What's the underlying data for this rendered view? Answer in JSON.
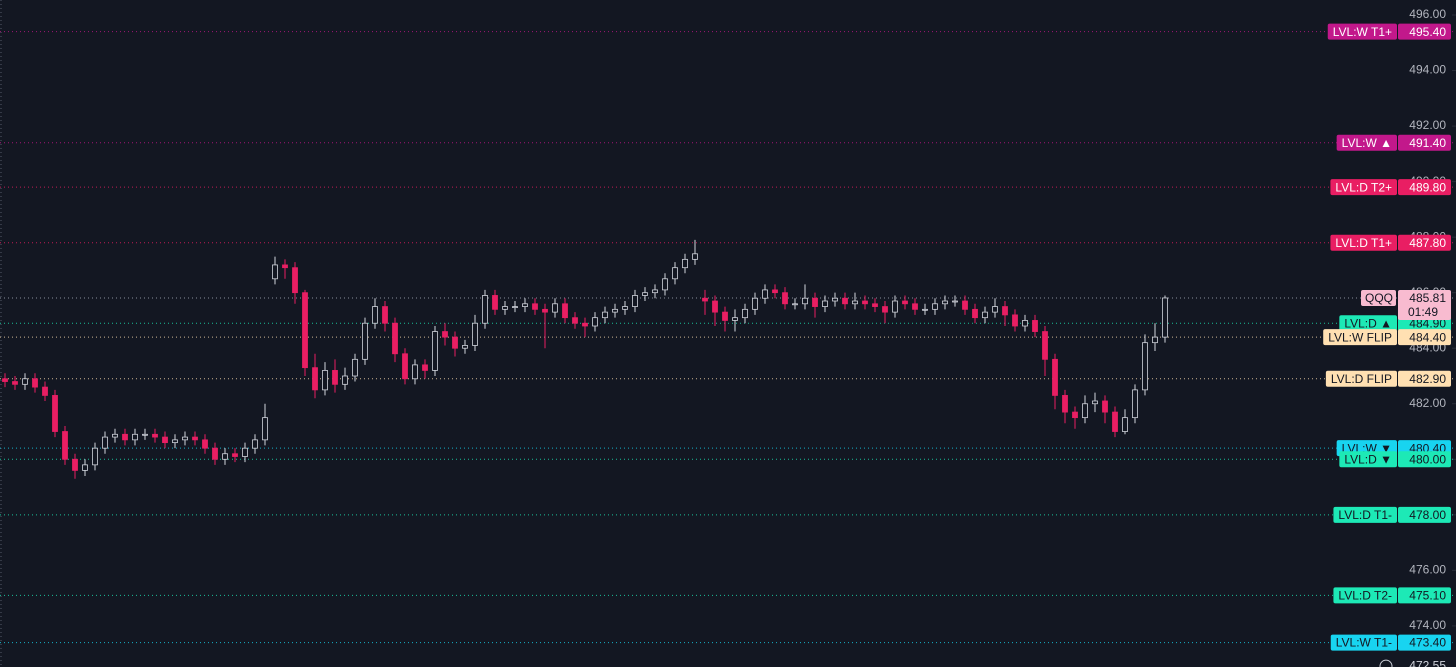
{
  "chart_data": {
    "type": "candlestick",
    "symbol": "QQQ",
    "last_price": 485.81,
    "countdown": "01:49",
    "cursor_price": 472.55,
    "up_color": "#d1d4dc",
    "down_color": "#e91e63",
    "ylim": [
      472.52,
      496.54
    ],
    "yticks": [
      {
        "value": 474,
        "label": "474.00"
      },
      {
        "value": 476,
        "label": "476.00"
      },
      {
        "value": 478,
        "label": "478.00"
      },
      {
        "value": 480,
        "label": "480.00"
      },
      {
        "value": 482,
        "label": "482.00"
      },
      {
        "value": 484,
        "label": "484.00"
      },
      {
        "value": 486,
        "label": "486.00"
      },
      {
        "value": 488,
        "label": "488.00"
      },
      {
        "value": 490,
        "label": "490.00"
      },
      {
        "value": 492,
        "label": "492.00"
      },
      {
        "value": 494,
        "label": "494.00"
      },
      {
        "value": 496,
        "label": "496.00"
      }
    ],
    "open": [
      482.9,
      482.8,
      482.7,
      482.9,
      482.6,
      482.3,
      481.0,
      480.0,
      479.6,
      479.8,
      480.4,
      480.8,
      480.9,
      480.7,
      480.9,
      480.9,
      480.8,
      480.6,
      480.7,
      480.8,
      480.7,
      480.4,
      480.0,
      480.2,
      480.1,
      480.4,
      480.7,
      486.5,
      487.0,
      486.9,
      486.0,
      483.3,
      482.5,
      483.2,
      482.7,
      483.0,
      483.6,
      484.9,
      485.5,
      484.9,
      483.8,
      482.9,
      483.4,
      483.2,
      484.6,
      484.4,
      484.0,
      484.1,
      484.9,
      485.9,
      485.4,
      485.5,
      485.5,
      485.6,
      485.4,
      485.3,
      485.6,
      485.1,
      484.9,
      484.8,
      485.1,
      485.3,
      485.4,
      485.5,
      485.9,
      486.0,
      486.1,
      486.5,
      486.9,
      487.2,
      485.8,
      485.7,
      485.3,
      485.0,
      485.1,
      485.4,
      485.8,
      486.1,
      486.0,
      485.6,
      485.6,
      485.8,
      485.5,
      485.7,
      485.8,
      485.6,
      485.7,
      485.6,
      485.5,
      485.3,
      485.7,
      485.6,
      485.4,
      485.4,
      485.6,
      485.7,
      485.7,
      485.4,
      485.1,
      485.3,
      485.5,
      485.2,
      484.8,
      485.0,
      484.6,
      483.6,
      482.3,
      481.7,
      481.5,
      482.0,
      482.1,
      481.7,
      481.0,
      481.5,
      482.5,
      484.2,
      484.4
    ],
    "high": [
      483.1,
      483.0,
      483.1,
      483.1,
      482.8,
      482.5,
      481.2,
      480.2,
      480.0,
      480.6,
      481.0,
      481.1,
      481.1,
      481.1,
      481.1,
      481.1,
      481.0,
      480.9,
      481.0,
      481.0,
      480.9,
      480.6,
      480.4,
      480.4,
      480.6,
      480.9,
      482.0,
      487.3,
      487.2,
      487.1,
      486.1,
      483.8,
      483.5,
      483.6,
      483.3,
      483.8,
      485.1,
      485.8,
      485.7,
      485.1,
      484.0,
      483.6,
      483.6,
      484.8,
      484.9,
      484.6,
      484.3,
      485.2,
      486.1,
      486.1,
      485.7,
      485.7,
      485.8,
      485.8,
      485.6,
      485.8,
      485.8,
      485.3,
      485.1,
      485.3,
      485.5,
      485.6,
      485.7,
      486.1,
      486.2,
      486.3,
      486.7,
      487.1,
      487.4,
      487.9,
      486.1,
      485.9,
      485.5,
      485.4,
      485.6,
      486.0,
      486.3,
      486.3,
      486.2,
      485.8,
      486.3,
      486.0,
      485.9,
      486.0,
      486.0,
      486.0,
      485.9,
      485.8,
      485.7,
      485.9,
      485.9,
      485.8,
      485.6,
      485.8,
      485.9,
      485.9,
      485.9,
      485.6,
      485.5,
      485.8,
      485.7,
      485.4,
      485.2,
      485.2,
      484.8,
      483.8,
      482.5,
      481.9,
      482.3,
      482.4,
      482.3,
      481.9,
      481.8,
      482.7,
      484.5,
      484.9,
      485.9
    ],
    "low": [
      482.6,
      482.5,
      482.5,
      482.4,
      482.1,
      480.8,
      479.8,
      479.3,
      479.4,
      479.6,
      480.2,
      480.6,
      480.5,
      480.5,
      480.7,
      480.6,
      480.4,
      480.4,
      480.5,
      480.5,
      480.2,
      479.8,
      479.8,
      479.9,
      479.9,
      480.2,
      480.5,
      486.3,
      486.5,
      485.6,
      483.0,
      482.2,
      482.3,
      482.4,
      482.5,
      482.8,
      483.4,
      484.7,
      484.6,
      483.5,
      482.7,
      482.7,
      482.9,
      483.0,
      484.1,
      483.7,
      483.8,
      483.9,
      484.7,
      485.2,
      485.2,
      485.3,
      485.3,
      485.2,
      484.0,
      485.1,
      484.9,
      484.7,
      484.4,
      484.6,
      484.9,
      485.1,
      485.2,
      485.3,
      485.7,
      485.8,
      485.9,
      486.3,
      486.7,
      487.0,
      485.2,
      484.8,
      484.6,
      484.6,
      484.9,
      485.2,
      485.6,
      485.8,
      485.4,
      485.4,
      485.4,
      485.1,
      485.3,
      485.5,
      485.4,
      485.4,
      485.4,
      485.3,
      484.9,
      485.1,
      485.4,
      485.2,
      485.2,
      485.2,
      485.4,
      485.5,
      485.2,
      484.9,
      484.9,
      485.1,
      484.8,
      484.6,
      484.6,
      484.4,
      483.0,
      481.8,
      481.3,
      481.1,
      481.3,
      481.7,
      481.3,
      480.8,
      480.9,
      481.3,
      482.3,
      483.9,
      484.2
    ],
    "close": [
      482.8,
      482.7,
      482.9,
      482.6,
      482.3,
      481.0,
      480.0,
      479.6,
      479.8,
      480.4,
      480.8,
      480.9,
      480.7,
      480.9,
      480.9,
      480.8,
      480.6,
      480.7,
      480.8,
      480.7,
      480.4,
      480.0,
      480.2,
      480.1,
      480.4,
      480.7,
      481.5,
      487.0,
      486.9,
      486.0,
      483.3,
      482.5,
      483.2,
      482.7,
      483.0,
      483.6,
      484.9,
      485.5,
      484.9,
      483.8,
      482.9,
      483.4,
      483.2,
      484.6,
      484.4,
      484.0,
      484.1,
      484.9,
      485.9,
      485.4,
      485.5,
      485.5,
      485.6,
      485.4,
      485.3,
      485.6,
      485.1,
      484.9,
      484.8,
      485.1,
      485.3,
      485.4,
      485.5,
      485.9,
      486.0,
      486.1,
      486.5,
      486.9,
      487.2,
      487.4,
      485.7,
      485.3,
      485.0,
      485.1,
      485.4,
      485.8,
      486.1,
      486.0,
      485.6,
      485.6,
      485.8,
      485.5,
      485.7,
      485.8,
      485.6,
      485.7,
      485.6,
      485.5,
      485.3,
      485.7,
      485.6,
      485.4,
      485.4,
      485.6,
      485.7,
      485.7,
      485.4,
      485.1,
      485.3,
      485.5,
      485.2,
      484.8,
      485.0,
      484.6,
      483.6,
      482.3,
      481.7,
      481.5,
      482.0,
      482.1,
      481.7,
      481.0,
      481.5,
      482.5,
      484.2,
      484.4,
      485.81
    ],
    "levels": [
      {
        "name": "LVL:W T1+",
        "value": 495.4,
        "label": "495.40",
        "color": "#c2188b"
      },
      {
        "name": "LVL:W ▲",
        "value": 491.4,
        "label": "491.40",
        "color": "#c2188b"
      },
      {
        "name": "LVL:D T2+",
        "value": 489.8,
        "label": "489.80",
        "color": "#e91e63"
      },
      {
        "name": "LVL:D T1+",
        "value": 487.8,
        "label": "487.80",
        "color": "#e91e63"
      },
      {
        "name": "LVL:D ▲",
        "value": 484.9,
        "label": "484.90",
        "color": "#1de9b6"
      },
      {
        "name": "LVL:W FLIP",
        "value": 484.4,
        "label": "484.40",
        "color": "#ffe0b2"
      },
      {
        "name": "LVL:D FLIP",
        "value": 482.9,
        "label": "482.90",
        "color": "#ffe0b2"
      },
      {
        "name": "LVL:W ▼",
        "value": 480.4,
        "label": "480.40",
        "color": "#18d4f0"
      },
      {
        "name": "LVL:D ▼",
        "value": 480.0,
        "label": "480.00",
        "color": "#1de9b6"
      },
      {
        "name": "LVL:D T1-",
        "value": 478.0,
        "label": "478.00",
        "color": "#1de9b6"
      },
      {
        "name": "LVL:D T2-",
        "value": 475.1,
        "label": "475.10",
        "color": "#1de9b6"
      },
      {
        "name": "LVL:W T1-",
        "value": 473.4,
        "label": "473.40",
        "color": "#18d4f0"
      }
    ]
  }
}
